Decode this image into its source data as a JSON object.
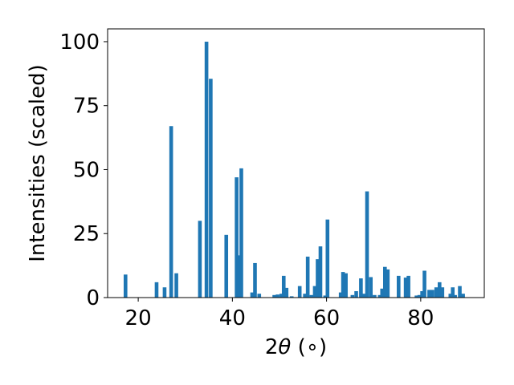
{
  "chart_data": {
    "type": "bar",
    "title": "",
    "xlabel": "2θ (∘)",
    "ylabel": "Intensities (scaled)",
    "xlim": [
      13.5,
      93.5
    ],
    "ylim": [
      0,
      105
    ],
    "xticks": [
      20,
      40,
      60,
      80
    ],
    "yticks": [
      0,
      25,
      50,
      75,
      100
    ],
    "xtick_labels": [
      "20",
      "40",
      "60",
      "80"
    ],
    "ytick_labels": [
      "0",
      "25",
      "50",
      "75",
      "100"
    ],
    "grid": false,
    "bar_color": "#1f77b4",
    "x": [
      17.3,
      23.9,
      25.6,
      27.0,
      28.1,
      33.1,
      34.5,
      35.4,
      38.7,
      40.9,
      41.4,
      41.9,
      44.2,
      44.8,
      45.7,
      48.9,
      49.6,
      50.4,
      50.9,
      51.5,
      52.6,
      54.3,
      55.4,
      56.0,
      56.8,
      57.5,
      58.1,
      58.7,
      59.7,
      60.2,
      63.0,
      63.5,
      64.1,
      65.5,
      66.3,
      67.3,
      68.0,
      68.6,
      69.4,
      70.2,
      71.3,
      71.8,
      72.4,
      73.0,
      75.3,
      76.8,
      77.4,
      79.1,
      79.7,
      80.3,
      80.8,
      81.8,
      82.5,
      83.3,
      84.0,
      84.6,
      86.3,
      86.8,
      87.3,
      88.3,
      89.0
    ],
    "values": [
      9,
      6,
      4,
      67,
      9.5,
      30,
      100,
      85.5,
      24.5,
      47,
      16.5,
      50.5,
      2,
      13.5,
      1.5,
      1,
      1.2,
      1.5,
      8.5,
      3.8,
      0.5,
      4.5,
      1.5,
      16,
      1,
      4.5,
      15,
      20,
      0.8,
      30.5,
      2,
      10,
      9.5,
      1,
      2.5,
      7.5,
      1.5,
      41.5,
      8,
      1,
      1,
      3.5,
      12,
      11,
      8.5,
      7.8,
      8.5,
      0.8,
      1,
      2.5,
      10.5,
      3,
      3,
      4,
      6,
      4,
      1.5,
      4,
      1,
      4.5,
      1.5
    ]
  }
}
